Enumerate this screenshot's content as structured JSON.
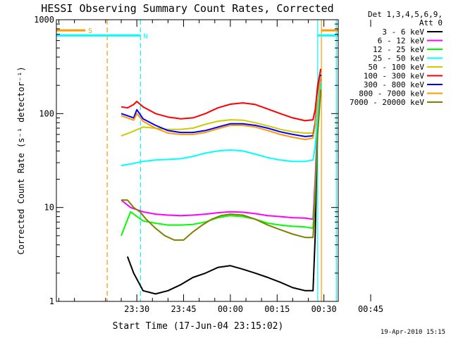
{
  "chart_data": {
    "type": "line",
    "title": "HESSI Observing Summary Count Rates, Corrected",
    "xlabel": "Start Time (17-Jun-04 23:15:02)",
    "ylabel": "Corrected Count Rate (s⁻¹ detector⁻¹)",
    "yscale": "log",
    "ylim": [
      1,
      1000
    ],
    "xlim_minutes": [
      -25.8,
      64.6
    ],
    "x_ticks": [
      {
        "label": "23:30",
        "min": 0
      },
      {
        "label": "23:45",
        "min": 15
      },
      {
        "label": "00:00",
        "min": 30
      },
      {
        "label": "00:15",
        "min": 45
      },
      {
        "label": "00:30",
        "min": 60
      },
      {
        "label": "00:45",
        "min": 75
      }
    ],
    "y_ticks": [
      {
        "label": "1",
        "value": 1
      },
      {
        "label": "10",
        "value": 10
      },
      {
        "label": "100",
        "value": 100
      },
      {
        "label": "1000",
        "value": 1000
      }
    ],
    "legend_title": [
      "Det 1,3,4,5,6,9,",
      "Att 0"
    ],
    "legend_position": "right",
    "series": [
      {
        "name": "3 - 6 keV",
        "color": "#000000",
        "points": [
          [
            -3,
            3
          ],
          [
            -1,
            2
          ],
          [
            2,
            1.3
          ],
          [
            6,
            1.2
          ],
          [
            10,
            1.3
          ],
          [
            14,
            1.5
          ],
          [
            18,
            1.8
          ],
          [
            22,
            2
          ],
          [
            26,
            2.3
          ],
          [
            30,
            2.4
          ],
          [
            34,
            2.2
          ],
          [
            38,
            2
          ],
          [
            42,
            1.8
          ],
          [
            46,
            1.6
          ],
          [
            50,
            1.4
          ],
          [
            54,
            1.3
          ],
          [
            56.5,
            1.3
          ],
          [
            57.2,
            5
          ],
          [
            58,
            80
          ],
          [
            59,
            220
          ]
        ]
      },
      {
        "name": "6 - 12 keV",
        "color": "#ff00ff",
        "points": [
          [
            -5,
            12
          ],
          [
            -2,
            10
          ],
          [
            2,
            9
          ],
          [
            6,
            8.5
          ],
          [
            10,
            8.3
          ],
          [
            14,
            8.2
          ],
          [
            18,
            8.3
          ],
          [
            22,
            8.5
          ],
          [
            26,
            8.8
          ],
          [
            30,
            9
          ],
          [
            34,
            8.9
          ],
          [
            38,
            8.6
          ],
          [
            42,
            8.2
          ],
          [
            46,
            8
          ],
          [
            50,
            7.8
          ],
          [
            54,
            7.7
          ],
          [
            56.5,
            7.5
          ],
          [
            57.2,
            20
          ],
          [
            58,
            90
          ],
          [
            59,
            240
          ]
        ]
      },
      {
        "name": "12 - 25 keV",
        "color": "#00ff00",
        "points": [
          [
            -5,
            5
          ],
          [
            -2,
            9
          ],
          [
            2,
            7.2
          ],
          [
            6,
            6.8
          ],
          [
            10,
            6.5
          ],
          [
            14,
            6.5
          ],
          [
            18,
            6.6
          ],
          [
            22,
            7
          ],
          [
            26,
            7.8
          ],
          [
            30,
            8.2
          ],
          [
            34,
            8
          ],
          [
            38,
            7.5
          ],
          [
            42,
            6.8
          ],
          [
            46,
            6.5
          ],
          [
            50,
            6.3
          ],
          [
            54,
            6.2
          ],
          [
            56.5,
            6
          ],
          [
            57.2,
            15
          ],
          [
            58,
            70
          ],
          [
            59,
            200
          ]
        ]
      },
      {
        "name": "25 - 50 keV",
        "color": "#00ffff",
        "points": [
          [
            -5,
            28
          ],
          [
            -2,
            29
          ],
          [
            2,
            31
          ],
          [
            6,
            32
          ],
          [
            10,
            32.5
          ],
          [
            14,
            33
          ],
          [
            18,
            35
          ],
          [
            22,
            38
          ],
          [
            26,
            40
          ],
          [
            30,
            41
          ],
          [
            34,
            40
          ],
          [
            38,
            37
          ],
          [
            42,
            34
          ],
          [
            46,
            32
          ],
          [
            50,
            31
          ],
          [
            54,
            31
          ],
          [
            56.5,
            32
          ],
          [
            57.2,
            45
          ],
          [
            58,
            100
          ],
          [
            59,
            220
          ]
        ]
      },
      {
        "name": "50 - 100 keV",
        "color": "#cccc00",
        "points": [
          [
            -5,
            58
          ],
          [
            -2,
            63
          ],
          [
            2,
            72
          ],
          [
            6,
            70
          ],
          [
            10,
            68
          ],
          [
            14,
            68
          ],
          [
            18,
            70
          ],
          [
            22,
            77
          ],
          [
            26,
            83
          ],
          [
            30,
            86
          ],
          [
            34,
            85
          ],
          [
            38,
            80
          ],
          [
            42,
            74
          ],
          [
            46,
            68
          ],
          [
            50,
            64
          ],
          [
            54,
            62
          ],
          [
            56.5,
            62
          ],
          [
            57.2,
            80
          ],
          [
            58,
            160
          ],
          [
            59,
            260
          ]
        ]
      },
      {
        "name": "100 - 300 keV",
        "color": "#ff0000",
        "points": [
          [
            -5,
            118
          ],
          [
            -3,
            115
          ],
          [
            -1,
            125
          ],
          [
            0,
            135
          ],
          [
            2,
            118
          ],
          [
            6,
            100
          ],
          [
            10,
            92
          ],
          [
            14,
            88
          ],
          [
            18,
            90
          ],
          [
            22,
            100
          ],
          [
            26,
            115
          ],
          [
            30,
            126
          ],
          [
            34,
            130
          ],
          [
            38,
            125
          ],
          [
            42,
            112
          ],
          [
            46,
            100
          ],
          [
            50,
            90
          ],
          [
            54,
            84
          ],
          [
            56.5,
            86
          ],
          [
            57.2,
            110
          ],
          [
            58,
            200
          ],
          [
            59,
            300
          ]
        ]
      },
      {
        "name": "300 - 800 keV",
        "color": "#0000ff",
        "points": [
          [
            -5,
            100
          ],
          [
            -3,
            95
          ],
          [
            -1,
            90
          ],
          [
            0,
            110
          ],
          [
            2,
            88
          ],
          [
            6,
            75
          ],
          [
            10,
            66
          ],
          [
            14,
            63
          ],
          [
            18,
            63
          ],
          [
            22,
            66
          ],
          [
            26,
            72
          ],
          [
            30,
            78
          ],
          [
            34,
            78
          ],
          [
            38,
            75
          ],
          [
            42,
            70
          ],
          [
            46,
            64
          ],
          [
            50,
            60
          ],
          [
            54,
            57
          ],
          [
            56.5,
            58
          ],
          [
            57.2,
            80
          ],
          [
            58,
            160
          ],
          [
            59,
            260
          ]
        ]
      },
      {
        "name": "800 - 7000 keV",
        "color": "#ff9900",
        "points": [
          [
            -5,
            95
          ],
          [
            -3,
            90
          ],
          [
            -1,
            85
          ],
          [
            0,
            100
          ],
          [
            2,
            83
          ],
          [
            6,
            70
          ],
          [
            10,
            62
          ],
          [
            14,
            60
          ],
          [
            18,
            60
          ],
          [
            22,
            63
          ],
          [
            26,
            69
          ],
          [
            30,
            75
          ],
          [
            34,
            75
          ],
          [
            38,
            72
          ],
          [
            42,
            66
          ],
          [
            46,
            60
          ],
          [
            50,
            56
          ],
          [
            54,
            53
          ],
          [
            56.5,
            55
          ],
          [
            57.2,
            75
          ],
          [
            58,
            150
          ],
          [
            59,
            250
          ]
        ]
      },
      {
        "name": "7000 - 20000 keV",
        "color": "#808000",
        "points": [
          [
            -5,
            12
          ],
          [
            -3,
            12
          ],
          [
            -1,
            10
          ],
          [
            1,
            9
          ],
          [
            3,
            7.5
          ],
          [
            6,
            6
          ],
          [
            9,
            5
          ],
          [
            12,
            4.5
          ],
          [
            15,
            4.5
          ],
          [
            18,
            5.5
          ],
          [
            21,
            6.5
          ],
          [
            24,
            7.5
          ],
          [
            27,
            8.2
          ],
          [
            30,
            8.5
          ],
          [
            34,
            8.3
          ],
          [
            38,
            7.5
          ],
          [
            42,
            6.5
          ],
          [
            46,
            5.8
          ],
          [
            50,
            5.2
          ],
          [
            54,
            4.8
          ],
          [
            56.5,
            4.8
          ],
          [
            57.2,
            12
          ],
          [
            58,
            60
          ],
          [
            59,
            180
          ]
        ]
      }
    ],
    "vertical_markers": [
      {
        "kind": "dashed",
        "color": "#ff9900",
        "min": -9.5
      },
      {
        "kind": "dashed",
        "color": "#00ffff",
        "min": 1.2
      },
      {
        "kind": "solid",
        "color": "#00ffff",
        "min": 58.0
      },
      {
        "kind": "solid",
        "color": "#ff9900",
        "min": 59.2
      },
      {
        "kind": "solid",
        "color": "#00ffff",
        "min": 64.0
      }
    ],
    "flag_bars": [
      {
        "label": "S",
        "color": "#ff9900",
        "value": 770,
        "segments": [
          [
            -25.8,
            -16.5
          ],
          [
            59.2,
            64.6
          ]
        ]
      },
      {
        "label": "N",
        "color": "#00ffff",
        "value": 680,
        "segments": [
          [
            -25.8,
            1.2
          ],
          [
            58.0,
            64.6
          ]
        ]
      }
    ]
  },
  "footer_date": "19-Apr-2010 15:15"
}
